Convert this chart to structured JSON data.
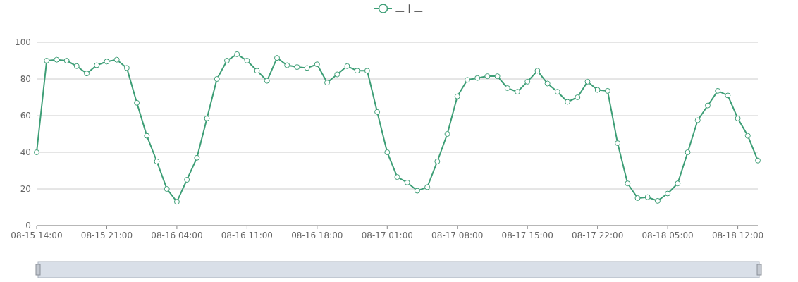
{
  "chart_data": {
    "type": "line",
    "legend": "top",
    "marker": "circle",
    "grid": "y",
    "x": [
      "--08-15T14:00",
      "--08-15T15:00",
      "--08-15T16:00",
      "--08-15T17:00",
      "--08-15T18:00",
      "--08-15T19:00",
      "--08-15T20:00",
      "--08-15T21:00",
      "--08-15T22:00",
      "--08-15T23:00",
      "--08-16T00:00",
      "--08-16T01:00",
      "--08-16T02:00",
      "--08-16T03:00",
      "--08-16T04:00",
      "--08-16T05:00",
      "--08-16T06:00",
      "--08-16T07:00",
      "--08-16T08:00",
      "--08-16T09:00",
      "--08-16T10:00",
      "--08-16T11:00",
      "--08-16T12:00",
      "--08-16T13:00",
      "--08-16T14:00",
      "--08-16T15:00",
      "--08-16T16:00",
      "--08-16T17:00",
      "--08-16T18:00",
      "--08-16T19:00",
      "--08-16T20:00",
      "--08-16T21:00",
      "--08-16T22:00",
      "--08-16T23:00",
      "--08-17T00:00",
      "--08-17T01:00",
      "--08-17T02:00",
      "--08-17T03:00",
      "--08-17T04:00",
      "--08-17T05:00",
      "--08-17T06:00",
      "--08-17T07:00",
      "--08-17T08:00",
      "--08-17T09:00",
      "--08-17T10:00",
      "--08-17T11:00",
      "--08-17T12:00",
      "--08-17T13:00",
      "--08-17T14:00",
      "--08-17T15:00",
      "--08-17T16:00",
      "--08-17T17:00",
      "--08-17T18:00",
      "--08-17T19:00",
      "--08-17T20:00",
      "--08-17T21:00",
      "--08-17T22:00",
      "--08-17T23:00",
      "--08-18T00:00",
      "--08-18T01:00",
      "--08-18T02:00",
      "--08-18T03:00",
      "--08-18T04:00",
      "--08-18T05:00",
      "--08-18T06:00",
      "--08-18T07:00",
      "--08-18T08:00",
      "--08-18T09:00",
      "--08-18T10:00",
      "--08-18T11:00",
      "--08-18T12:00",
      "--08-18T13:00",
      "--08-18T14:00"
    ],
    "series": [
      {
        "name": "二十二",
        "color": "#3d9e76",
        "values": [
          40,
          90,
          90.5,
          90,
          87,
          83,
          87.5,
          89.5,
          90.5,
          86,
          67,
          49,
          35,
          20,
          13,
          25,
          37,
          58.5,
          80,
          90,
          93.5,
          90,
          84.5,
          79,
          91.5,
          87.5,
          86.5,
          86,
          88,
          78,
          82.5,
          87,
          84.5,
          84.5,
          62,
          40,
          26.5,
          23.5,
          19,
          21,
          35,
          50,
          70.5,
          79.5,
          80.5,
          81.5,
          81.5,
          75,
          73,
          78.5,
          84.5,
          77.5,
          73,
          67.5,
          70,
          78.5,
          74,
          73.5,
          45,
          23,
          15,
          15.5,
          13.5,
          17.5,
          23,
          40,
          57.5,
          65.5,
          73.5,
          71,
          58.5,
          49,
          35.5
        ]
      }
    ],
    "xlim": [
      "--08-15T14:00",
      "--08-18T14:00"
    ],
    "xticks": [
      {
        "value": "--08-15T14:00",
        "label": "08-15 14:00"
      },
      {
        "value": "--08-15T21:00",
        "label": "08-15 21:00"
      },
      {
        "value": "--08-16T04:00",
        "label": "08-16 04:00"
      },
      {
        "value": "--08-16T11:00",
        "label": "08-16 11:00"
      },
      {
        "value": "--08-16T18:00",
        "label": "08-16 18:00"
      },
      {
        "value": "--08-17T01:00",
        "label": "08-17 01:00"
      },
      {
        "value": "--08-17T08:00",
        "label": "08-17 08:00"
      },
      {
        "value": "--08-17T15:00",
        "label": "08-17 15:00"
      },
      {
        "value": "--08-17T22:00",
        "label": "08-17 22:00"
      },
      {
        "value": "--08-18T05:00",
        "label": "08-18 05:00"
      },
      {
        "value": "--08-18T12:00",
        "label": "08-18 12:00"
      }
    ],
    "ylim": [
      0,
      100
    ],
    "yticks": [
      0,
      20,
      40,
      60,
      80,
      100
    ]
  }
}
